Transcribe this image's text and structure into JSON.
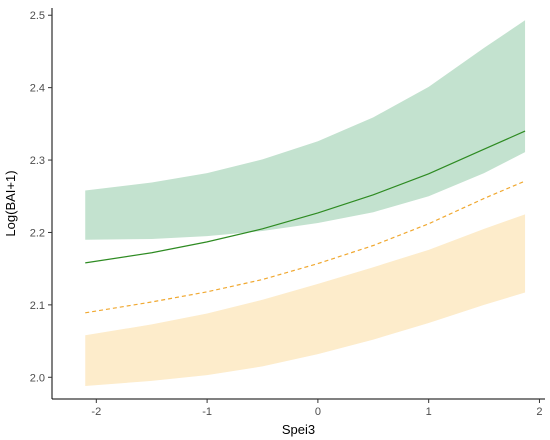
{
  "chart_data": {
    "type": "line",
    "title": "",
    "xlabel": "Spei3",
    "ylabel": "Log(BAI+1)",
    "xlim": [
      -2.4,
      2.05
    ],
    "ylim": [
      1.97,
      2.51
    ],
    "x_ticks": [
      -2,
      -1,
      0,
      1,
      2
    ],
    "y_ticks": [
      2.0,
      2.1,
      2.2,
      2.3,
      2.4,
      2.5
    ],
    "grid": false,
    "legend": "none",
    "colors": {
      "green_line": "#2e8b22",
      "green_band": "#c3e2cf",
      "orange_line": "#f0a830",
      "orange_band": "#fdeccb",
      "overlap_band": "#d8d6a6"
    },
    "series": [
      {
        "color": "green",
        "line_style": "solid",
        "x": [
          -2.1,
          -1.5,
          -1.0,
          -0.5,
          0.0,
          0.5,
          1.0,
          1.5,
          1.87
        ],
        "y": [
          2.158,
          2.172,
          2.187,
          2.205,
          2.227,
          2.252,
          2.281,
          2.315,
          2.34
        ],
        "lower": [
          2.19,
          2.191,
          2.195,
          2.202,
          2.213,
          2.228,
          2.25,
          2.282,
          2.311
        ],
        "upper": [
          2.258,
          2.269,
          2.282,
          2.301,
          2.326,
          2.359,
          2.401,
          2.455,
          2.493
        ]
      },
      {
        "color": "orange",
        "line_style": "dashed",
        "x": [
          -2.1,
          -1.5,
          -1.0,
          -0.5,
          0.0,
          0.5,
          1.0,
          1.5,
          1.87
        ],
        "y": [
          2.089,
          2.104,
          2.118,
          2.135,
          2.157,
          2.182,
          2.212,
          2.247,
          2.271
        ],
        "lower": [
          1.988,
          1.995,
          2.003,
          2.015,
          2.032,
          2.052,
          2.075,
          2.1,
          2.117
        ],
        "upper": [
          2.058,
          2.073,
          2.088,
          2.107,
          2.129,
          2.152,
          2.176,
          2.205,
          2.225
        ]
      }
    ]
  }
}
